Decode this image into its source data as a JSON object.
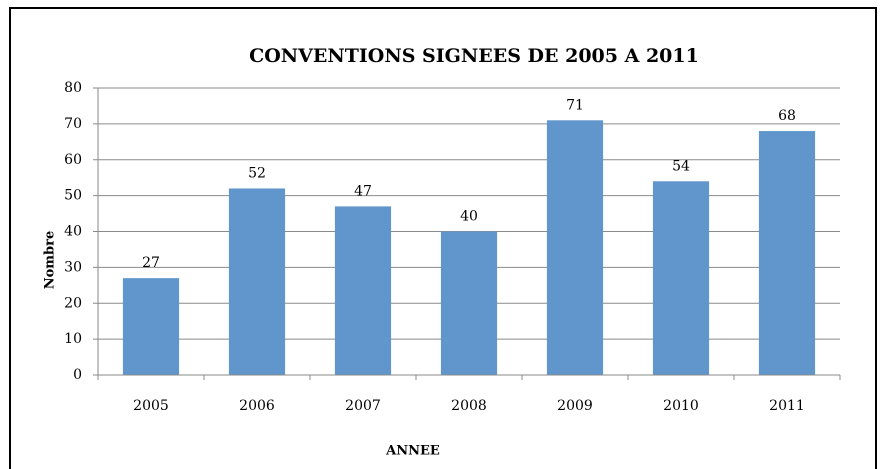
{
  "chart_data": {
    "type": "bar",
    "title": "CONVENTIONS SIGNEES DE 2005 A 2011",
    "x_label": "ANNEE",
    "y_label": "Nombre",
    "categories": [
      "2005",
      "2006",
      "2007",
      "2008",
      "2009",
      "2010",
      "2011"
    ],
    "values": [
      27,
      52,
      47,
      40,
      71,
      54,
      68
    ],
    "color": "#6096cc",
    "ylim": [
      0,
      80
    ],
    "yticks": [
      0,
      10,
      20,
      30,
      40,
      50,
      60,
      70,
      80
    ],
    "grid": true
  }
}
